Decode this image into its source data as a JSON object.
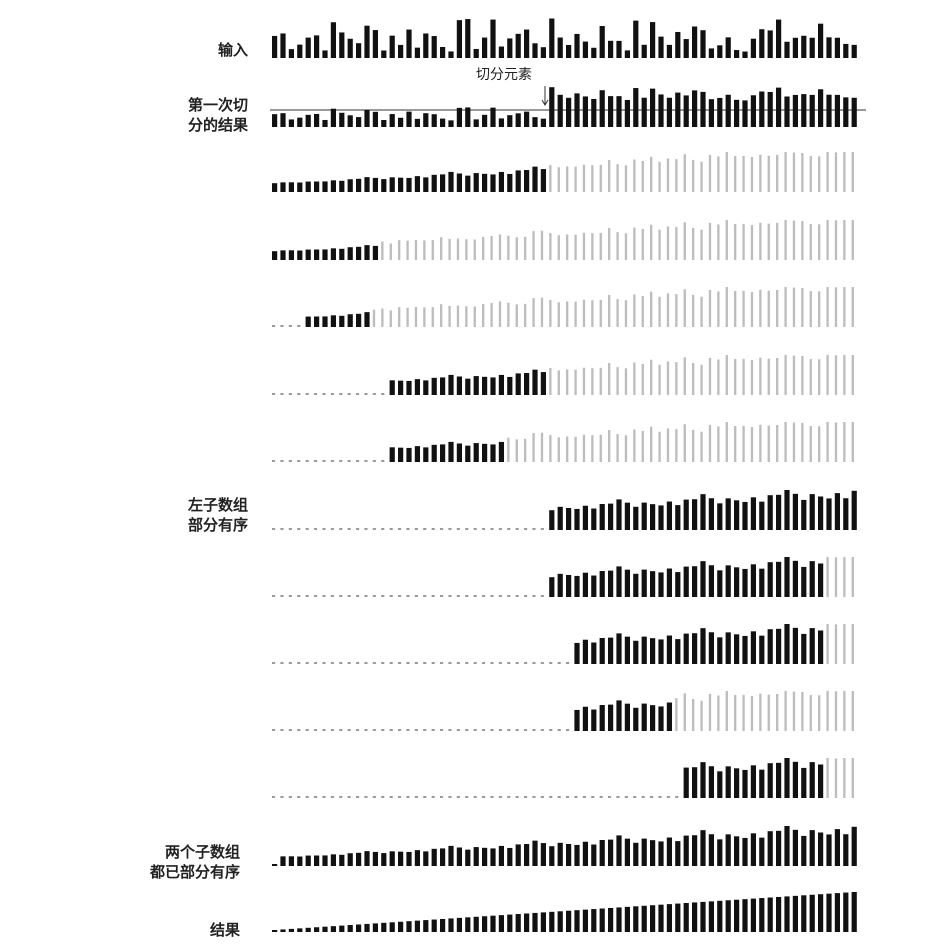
{
  "labels": {
    "input": [
      "输入"
    ],
    "first_partition": [
      "第一次切",
      "分的结果"
    ],
    "pivot": "切分元素",
    "left_partial": [
      "左子数组",
      "部分有序"
    ],
    "both_partial": [
      "两个子数组",
      "都已部分有序"
    ],
    "result": [
      "结果"
    ]
  },
  "colors": {
    "active": "#111111",
    "inactive": "#bdbdbd",
    "dotted": "#9a9a9a",
    "pivot_line": "#333333"
  },
  "trace": {
    "n": 70,
    "rows": [
      {
        "name": "input",
        "mode": "input"
      },
      {
        "name": "first-partition",
        "mode": "partition",
        "active": [
          0,
          69
        ]
      },
      {
        "name": "step-3",
        "mode": "state",
        "active": [
          0,
          32
        ],
        "sorted_upto": -1
      },
      {
        "name": "step-4",
        "mode": "state",
        "active": [
          0,
          12
        ],
        "sorted_upto": -1
      },
      {
        "name": "step-5",
        "mode": "state",
        "active": [
          0,
          11
        ],
        "sorted_upto": 3
      },
      {
        "name": "step-6",
        "mode": "state",
        "active": [
          14,
          32
        ],
        "sorted_upto": 13
      },
      {
        "name": "step-7",
        "mode": "state",
        "active": [
          14,
          27
        ],
        "sorted_upto": 13
      },
      {
        "name": "left-partial",
        "mode": "state",
        "active": [
          33,
          69
        ],
        "sorted_upto": 32
      },
      {
        "name": "step-9",
        "mode": "state",
        "active": [
          33,
          65
        ],
        "sorted_upto": 32
      },
      {
        "name": "step-10",
        "mode": "state",
        "active": [
          36,
          65
        ],
        "sorted_upto": 35
      },
      {
        "name": "step-11",
        "mode": "state",
        "active": [
          36,
          47
        ],
        "sorted_upto": 35
      },
      {
        "name": "step-12",
        "mode": "state",
        "active": [
          49,
          65
        ],
        "sorted_upto": 48
      },
      {
        "name": "both-partial",
        "mode": "state",
        "active": [
          0,
          69
        ],
        "sorted_upto": 0,
        "all_dark": true
      },
      {
        "name": "result",
        "mode": "sorted"
      }
    ]
  }
}
